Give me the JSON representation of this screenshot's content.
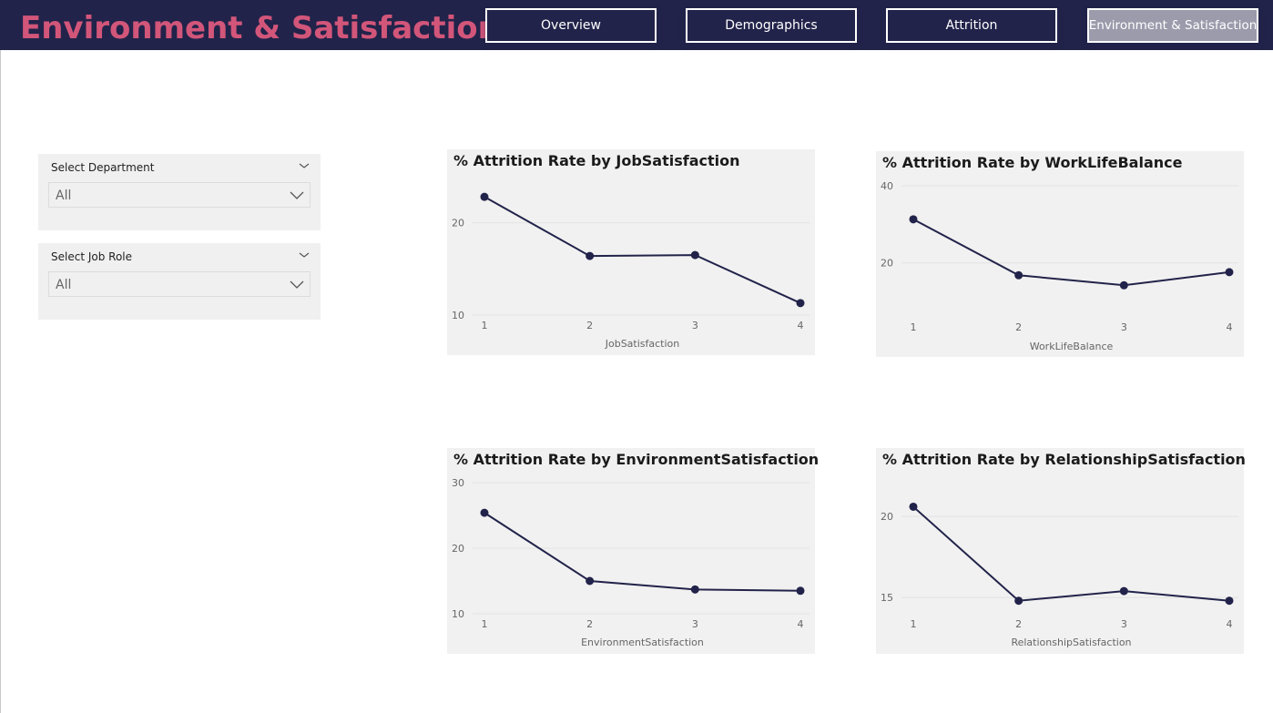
{
  "header": {
    "title": "Environment & Satisfaction",
    "nav": [
      {
        "label": "Overview",
        "active": false
      },
      {
        "label": "Demographics",
        "active": false
      },
      {
        "label": "Attrition",
        "active": false
      },
      {
        "label": "Environment & Satisfaction",
        "active": true
      }
    ]
  },
  "filters": {
    "department": {
      "label": "Select Department",
      "value": "All"
    },
    "job_role": {
      "label": "Select Job Role",
      "value": "All"
    }
  },
  "colors": {
    "header_bg": "#22234a",
    "title": "#d2567a",
    "line": "#22234a",
    "card_bg": "#f1f1f1"
  },
  "chart_data": [
    {
      "type": "line",
      "title": "% Attrition Rate by JobSatisfaction",
      "xlabel": "JobSatisfaction",
      "ylabel": "",
      "categories": [
        "1",
        "2",
        "3",
        "4"
      ],
      "values": [
        22.8,
        16.4,
        16.5,
        11.3
      ],
      "yticks": [
        10,
        20
      ],
      "ylim": [
        10,
        24
      ]
    },
    {
      "type": "line",
      "title": "% Attrition Rate by WorkLifeBalance",
      "xlabel": "WorkLifeBalance",
      "ylabel": "",
      "categories": [
        "1",
        "2",
        "3",
        "4"
      ],
      "values": [
        31.3,
        16.8,
        14.2,
        17.6
      ],
      "yticks": [
        20,
        40
      ],
      "ylim": [
        6,
        40
      ]
    },
    {
      "type": "line",
      "title": "% Attrition Rate by EnvironmentSatisfaction",
      "xlabel": "EnvironmentSatisfaction",
      "ylabel": "",
      "categories": [
        "1",
        "2",
        "3",
        "4"
      ],
      "values": [
        25.4,
        15.0,
        13.7,
        13.5
      ],
      "yticks": [
        10,
        20,
        30
      ],
      "ylim": [
        10,
        30
      ]
    },
    {
      "type": "line",
      "title": "% Attrition Rate by RelationshipSatisfaction",
      "xlabel": "RelationshipSatisfaction",
      "ylabel": "",
      "categories": [
        "1",
        "2",
        "3",
        "4"
      ],
      "values": [
        20.6,
        14.8,
        15.4,
        14.8
      ],
      "yticks": [
        15,
        20
      ],
      "ylim": [
        14,
        21.3
      ]
    }
  ]
}
